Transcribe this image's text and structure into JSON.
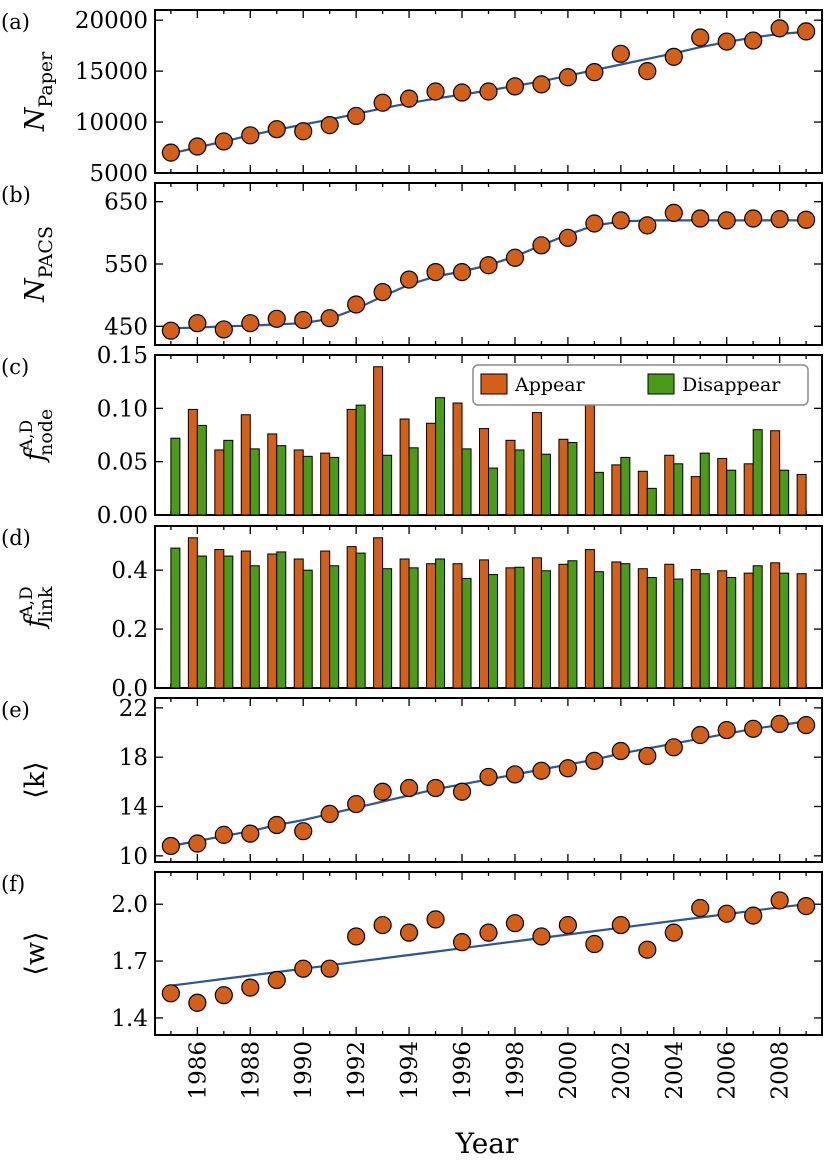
{
  "colors": {
    "appear": "#d2601a",
    "disappear": "#4c9a19",
    "dot": "#d2601a",
    "fit": "#2c5694"
  },
  "years": [
    1985,
    1986,
    1987,
    1988,
    1989,
    1990,
    1991,
    1992,
    1993,
    1994,
    1995,
    1996,
    1997,
    1998,
    1999,
    2000,
    2001,
    2002,
    2003,
    2004,
    2005,
    2006,
    2007,
    2008,
    2009
  ],
  "x_axis": {
    "label": "Year",
    "tick_labels": [
      "1986",
      "1988",
      "1990",
      "1992",
      "1994",
      "1996",
      "1998",
      "2000",
      "2002",
      "2004",
      "2006",
      "2008"
    ]
  },
  "chart_data": [
    {
      "id": "a",
      "panel_label": "(a)",
      "type": "scatter",
      "ylabel_main": "N",
      "ylabel_sub": "Paper",
      "ylim": [
        5000,
        21000
      ],
      "yticks": [
        5000,
        10000,
        15000,
        20000
      ],
      "ytick_labels": [
        "5000",
        "10000",
        "15000",
        "20000"
      ],
      "values": [
        7000,
        7600,
        8100,
        8700,
        9300,
        9100,
        9700,
        10600,
        11900,
        12300,
        13000,
        12900,
        13000,
        13500,
        13700,
        14400,
        14900,
        16700,
        15000,
        16400,
        18300,
        17900,
        18000,
        19200,
        18900
      ],
      "fit": [
        6900,
        7500,
        8100,
        8700,
        9250,
        9750,
        10250,
        10800,
        11350,
        11850,
        12300,
        12700,
        13100,
        13550,
        14000,
        14550,
        15100,
        15650,
        16200,
        16750,
        17350,
        17850,
        18300,
        18650,
        18850
      ]
    },
    {
      "id": "b",
      "panel_label": "(b)",
      "type": "scatter",
      "ylabel_main": "N",
      "ylabel_sub": "PACS",
      "ylim": [
        420,
        680
      ],
      "yticks": [
        450,
        550,
        650
      ],
      "ytick_labels": [
        "450",
        "550",
        "650"
      ],
      "values": [
        443,
        455,
        445,
        455,
        462,
        460,
        463,
        485,
        505,
        525,
        537,
        537,
        548,
        560,
        580,
        592,
        615,
        620,
        612,
        632,
        623,
        620,
        623,
        622,
        621
      ],
      "fit": [
        447,
        448,
        450,
        451,
        453,
        455,
        462,
        478,
        498,
        517,
        530,
        538,
        548,
        562,
        580,
        597,
        612,
        618,
        620,
        620,
        620,
        620,
        620,
        620,
        620
      ]
    },
    {
      "id": "c",
      "panel_label": "(c)",
      "type": "bar",
      "ylabel_main": "f",
      "ylabel_sub": "node",
      "ylabel_sup": "A,D",
      "ylim": [
        0,
        0.15
      ],
      "yticks": [
        0,
        0.05,
        0.1,
        0.15
      ],
      "ytick_labels": [
        "0.00",
        "0.05",
        "0.10",
        "0.15"
      ],
      "legend": {
        "position": "top-right",
        "appear_label": "Appear",
        "disappear_label": "Disappear"
      },
      "series": [
        {
          "name": "Appear",
          "values": [
            null,
            0.099,
            0.061,
            0.094,
            0.076,
            0.061,
            0.058,
            0.099,
            0.139,
            0.09,
            0.086,
            0.105,
            0.081,
            0.07,
            0.096,
            0.071,
            0.103,
            0.047,
            0.041,
            0.056,
            0.036,
            0.053,
            0.048,
            0.079,
            0.038
          ]
        },
        {
          "name": "Disappear",
          "values": [
            0.072,
            0.084,
            0.07,
            0.062,
            0.065,
            0.055,
            0.054,
            0.103,
            0.056,
            0.063,
            0.11,
            0.062,
            0.044,
            0.061,
            0.057,
            0.068,
            0.04,
            0.054,
            0.025,
            0.048,
            0.058,
            0.042,
            0.08,
            0.042,
            null
          ]
        }
      ]
    },
    {
      "id": "d",
      "panel_label": "(d)",
      "type": "bar",
      "ylabel_main": "f",
      "ylabel_sub": "link",
      "ylabel_sup": "A,D",
      "ylim": [
        0,
        0.55
      ],
      "yticks": [
        0,
        0.2,
        0.4
      ],
      "ytick_labels": [
        "0.0",
        "0.2",
        "0.4"
      ],
      "series": [
        {
          "name": "Appear",
          "values": [
            null,
            0.51,
            0.47,
            0.465,
            0.455,
            0.438,
            0.465,
            0.48,
            0.51,
            0.438,
            0.422,
            0.422,
            0.435,
            0.408,
            0.442,
            0.42,
            0.47,
            0.428,
            0.405,
            0.42,
            0.402,
            0.398,
            0.39,
            0.425,
            0.388
          ]
        },
        {
          "name": "Disappear",
          "values": [
            0.475,
            0.448,
            0.448,
            0.415,
            0.462,
            0.4,
            0.415,
            0.458,
            0.405,
            0.408,
            0.438,
            0.372,
            0.385,
            0.41,
            0.398,
            0.432,
            0.395,
            0.422,
            0.375,
            0.37,
            0.388,
            0.375,
            0.415,
            0.39,
            null
          ]
        }
      ]
    },
    {
      "id": "e",
      "panel_label": "(e)",
      "type": "scatter",
      "ylabel_main": "⟨k⟩",
      "ylim": [
        9.5,
        22.8
      ],
      "yticks": [
        10,
        14,
        18,
        22
      ],
      "ytick_labels": [
        "10",
        "14",
        "18",
        "22"
      ],
      "values": [
        10.8,
        11.0,
        11.7,
        11.8,
        12.5,
        12.0,
        13.4,
        14.2,
        15.2,
        15.5,
        15.5,
        15.2,
        16.4,
        16.6,
        16.9,
        17.1,
        17.7,
        18.5,
        18.1,
        18.8,
        19.8,
        20.2,
        20.3,
        20.7,
        20.6
      ],
      "fit": [
        10.8,
        11.2,
        11.6,
        12.0,
        12.5,
        12.9,
        13.4,
        13.9,
        14.4,
        14.9,
        15.4,
        15.8,
        16.2,
        16.6,
        17.0,
        17.4,
        17.8,
        18.3,
        18.7,
        19.1,
        19.5,
        19.9,
        20.3,
        20.6,
        20.9
      ]
    },
    {
      "id": "f",
      "panel_label": "(f)",
      "type": "scatter",
      "ylabel_main": "⟨w⟩",
      "ylim": [
        1.31,
        2.17
      ],
      "yticks": [
        1.4,
        1.7,
        2.0
      ],
      "ytick_labels": [
        "1.4",
        "1.7",
        "2.0"
      ],
      "values": [
        1.53,
        1.48,
        1.52,
        1.56,
        1.6,
        1.66,
        1.66,
        1.83,
        1.89,
        1.85,
        1.92,
        1.8,
        1.85,
        1.9,
        1.83,
        1.89,
        1.79,
        1.89,
        1.76,
        1.85,
        1.98,
        1.95,
        1.94,
        2.02,
        1.99
      ],
      "fit": [
        1.57,
        1.588,
        1.606,
        1.624,
        1.642,
        1.66,
        1.678,
        1.696,
        1.714,
        1.732,
        1.75,
        1.768,
        1.786,
        1.804,
        1.822,
        1.84,
        1.858,
        1.876,
        1.894,
        1.912,
        1.93,
        1.948,
        1.966,
        1.984,
        2.0
      ]
    }
  ]
}
